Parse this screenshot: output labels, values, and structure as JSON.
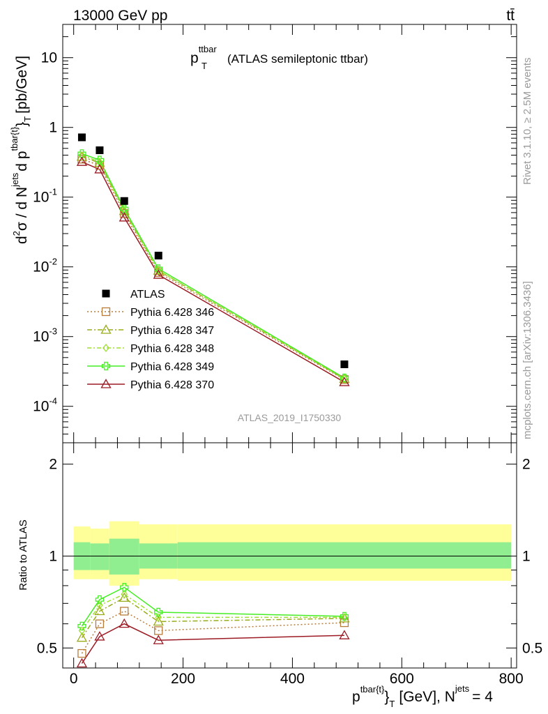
{
  "header": {
    "energy": "13000 GeV pp",
    "process": "tt̄"
  },
  "side": {
    "rivet": "Rivet 3.1.10, ≥ 2.5M events",
    "mcplots": "mcplots.cern.ch [arXiv:1306.3436]"
  },
  "main_plot": {
    "title_p": "p",
    "title_sup": "ttbar",
    "title_sub": "T",
    "title_rest": "(ATLAS semileptonic ttbar)",
    "watermark": "ATLAS_2019_I1750330",
    "ylabel": {
      "d1": "d",
      "sup2": "2",
      "sigma": "σ / d N",
      "jets": "jets",
      "d2": "d p",
      "tbar": "tbar{t}",
      "close": "}",
      "T": "T",
      "unit": "[pb/GeV]"
    },
    "ytick_labels": [
      {
        "b": "10",
        "e": "-4"
      },
      {
        "b": "10",
        "e": "-3"
      },
      {
        "b": "10",
        "e": "-2"
      },
      {
        "b": "10",
        "e": "-1"
      },
      {
        "b": "1",
        "e": ""
      },
      {
        "b": "10",
        "e": ""
      }
    ]
  },
  "ratio_plot": {
    "ylabel": "Ratio to ATLAS",
    "ytick_labels": [
      "0.5",
      "1",
      "2"
    ]
  },
  "xaxis": {
    "tick_labels": [
      "0",
      "200",
      "400",
      "600",
      "800"
    ],
    "label_p": "p",
    "label_sup": "tbar{t}",
    "label_brace": "}",
    "label_sub": "T",
    "label_unit": "[GeV], N",
    "label_jets": "jets",
    "label_eq": "= 4"
  },
  "chart_data": {
    "type": "scatter",
    "x_scale": "linear",
    "y_scale": "log",
    "xlim": [
      -20,
      810
    ],
    "ylim": [
      3e-05,
      30
    ],
    "ratio_ylim": [
      0.43,
      2.35
    ],
    "ratio_scale": "log",
    "legend_position": "bottom-left",
    "x": [
      15,
      47.5,
      92.5,
      155,
      495
    ],
    "x_edges": [
      0,
      30,
      65,
      120,
      190,
      800
    ],
    "reference": {
      "name": "ATLAS",
      "color": "#000000",
      "values": [
        0.72,
        0.47,
        0.088,
        0.0145,
        0.0004
      ]
    },
    "band_inner": [
      [
        0.9,
        1.11
      ],
      [
        0.9,
        1.1
      ],
      [
        0.87,
        1.14
      ],
      [
        0.91,
        1.1
      ],
      [
        0.91,
        1.11
      ]
    ],
    "band_outer": [
      [
        0.84,
        1.25
      ],
      [
        0.84,
        1.23
      ],
      [
        0.8,
        1.3
      ],
      [
        0.84,
        1.27
      ],
      [
        0.83,
        1.27
      ]
    ],
    "series": [
      {
        "name": "Pythia 6.428 346",
        "color": "#b87b38",
        "marker": "open-square",
        "dash": "2,3",
        "values": [
          0.35,
          0.285,
          0.058,
          0.0083,
          0.000242
        ],
        "ratio": [
          0.48,
          0.6,
          0.66,
          0.57,
          0.605
        ]
      },
      {
        "name": "Pythia 6.428 347",
        "color": "#9aab1c",
        "marker": "open-triangle",
        "dash": "7,3,2,3",
        "values": [
          0.38,
          0.31,
          0.063,
          0.0088,
          0.000247
        ],
        "ratio": [
          0.54,
          0.66,
          0.73,
          0.61,
          0.625
        ]
      },
      {
        "name": "Pythia 6.428 348",
        "color": "#9ee030",
        "marker": "open-diamond",
        "dash": "6,3,2,3",
        "values": [
          0.4,
          0.32,
          0.065,
          0.0089,
          0.00025
        ],
        "ratio": [
          0.57,
          0.69,
          0.75,
          0.63,
          0.63
        ]
      },
      {
        "name": "Pythia 6.428 349",
        "color": "#44ee22",
        "marker": "open-cross",
        "dash": "",
        "values": [
          0.42,
          0.34,
          0.068,
          0.0094,
          0.000255
        ],
        "ratio": [
          0.59,
          0.72,
          0.79,
          0.655,
          0.635
        ]
      },
      {
        "name": "Pythia 6.428 370",
        "color": "#9c1a24",
        "marker": "open-triangle",
        "dash": "",
        "values": [
          0.32,
          0.25,
          0.051,
          0.0077,
          0.000222
        ],
        "ratio": [
          0.445,
          0.545,
          0.6,
          0.53,
          0.55
        ]
      }
    ]
  }
}
